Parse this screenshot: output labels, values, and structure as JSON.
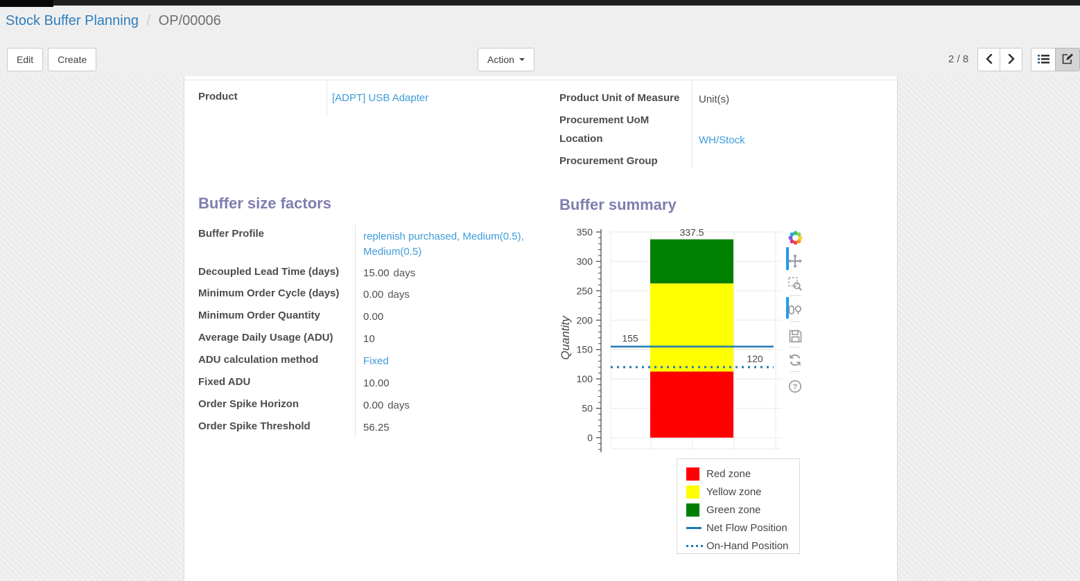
{
  "breadcrumb": {
    "parent": "Stock Buffer Planning",
    "separator": "/",
    "current": "OP/00006"
  },
  "control_panel": {
    "edit_label": "Edit",
    "create_label": "Create",
    "action_label": "Action",
    "pager": "2 / 8"
  },
  "form": {
    "product_group": {
      "rows_left": [
        {
          "label": "Product",
          "value": "[ADPT] USB Adapter"
        }
      ],
      "rows_right": [
        {
          "label": "Product Unit of Measure",
          "value": "Unit(s)"
        },
        {
          "label": "Procurement UoM",
          "value": ""
        },
        {
          "label": "Location",
          "value": "WH/Stock"
        },
        {
          "label": "Procurement Group",
          "value": ""
        }
      ]
    },
    "buffer_factors": {
      "title": "Buffer size factors",
      "rows": [
        {
          "label": "Buffer Profile",
          "value": "replenish purchased, Medium(0.5), Medium(0.5)",
          "suffix": ""
        },
        {
          "label": "Decoupled Lead Time (days)",
          "value": "15.00",
          "suffix": "days"
        },
        {
          "label": "Minimum Order Cycle (days)",
          "value": "0.00",
          "suffix": "days"
        },
        {
          "label": "Minimum Order Quantity",
          "value": "0.00",
          "suffix": ""
        },
        {
          "label": "Average Daily Usage (ADU)",
          "value": "10",
          "suffix": ""
        },
        {
          "label": "ADU calculation method",
          "value": "Fixed",
          "suffix": ""
        },
        {
          "label": "Fixed ADU",
          "value": "10.00",
          "suffix": ""
        },
        {
          "label": "Order Spike Horizon",
          "value": "0.00",
          "suffix": "days"
        },
        {
          "label": "Order Spike Threshold",
          "value": "56.25",
          "suffix": ""
        }
      ]
    },
    "buffer_summary_title": "Buffer summary"
  },
  "chart_data": {
    "type": "bar",
    "title": "",
    "xlabel": "",
    "ylabel": "Quantity",
    "ylim": [
      0,
      350
    ],
    "ytick_step": 50,
    "minor_tick_step": 10,
    "grid": true,
    "categories": [
      ""
    ],
    "series": [
      {
        "name": "Red zone",
        "color": "#ff0000",
        "value": 112.5,
        "cumulative": 112.5
      },
      {
        "name": "Yellow zone",
        "color": "#ffff00",
        "value": 150,
        "cumulative": 262.5
      },
      {
        "name": "Green zone",
        "color": "#008000",
        "value": 75,
        "cumulative": 337.5
      }
    ],
    "bar_value_labels": [
      "112.5",
      "262.5",
      "337.5"
    ],
    "lines": [
      {
        "name": "Net Flow Position",
        "style": "solid",
        "color": "#1f77b4",
        "value": 155,
        "label": "155",
        "label_side": "left"
      },
      {
        "name": "On-Hand Position",
        "style": "dotted",
        "color": "#1f77b4",
        "value": 120,
        "label": "120",
        "label_side": "right"
      }
    ],
    "legend_position": "bottom-right",
    "legend_items": [
      {
        "label": "Red zone",
        "swatch": "square",
        "color": "#ff0000"
      },
      {
        "label": "Yellow zone",
        "swatch": "square",
        "color": "#ffff00"
      },
      {
        "label": "Green zone",
        "swatch": "square",
        "color": "#008000"
      },
      {
        "label": "Net Flow Position",
        "swatch": "solid-line",
        "color": "#1f77b4"
      },
      {
        "label": "On-Hand Position",
        "swatch": "dotted-line",
        "color": "#1f77b4"
      }
    ]
  },
  "modebar": {
    "help_glyph": "?"
  }
}
